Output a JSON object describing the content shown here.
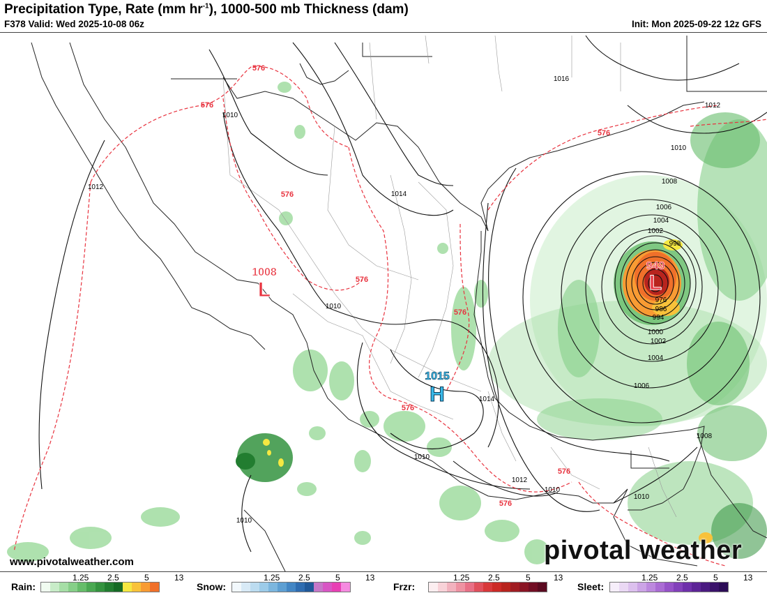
{
  "header": {
    "title_main": "Precipitation Type, Rate (mm hr",
    "title_sup": "-1",
    "title_rest": "), 1000-500 mb Thickness (dam)",
    "valid": "F378 Valid: Wed 2025-10-08 06z",
    "init": "Init: Mon 2025-09-22 12z GFS"
  },
  "map": {
    "pressure_centers": [
      {
        "type": "L",
        "value": "1008",
        "color": "#e8333f"
      },
      {
        "type": "L",
        "value": "949",
        "color": "#e8333f"
      },
      {
        "type": "H",
        "value": "1015",
        "color": "#38b8e8"
      }
    ],
    "isobar_labels": [
      "1016",
      "1012",
      "1010",
      "1012",
      "1014",
      "1010",
      "1010",
      "1010",
      "1008",
      "1006",
      "1004",
      "1002",
      "998",
      "976",
      "986",
      "994",
      "1000",
      "1002",
      "1004",
      "1006",
      "1014",
      "1012",
      "1010",
      "1010",
      "1008",
      "1010"
    ],
    "thickness_labels": [
      "576",
      "576",
      "576",
      "576",
      "576",
      "576",
      "576",
      "576",
      "576"
    ]
  },
  "footer": {
    "website": "www.pivotalweather.com",
    "brand": "pivotal weather"
  },
  "legend": [
    {
      "name": "Rain:",
      "ticks": [
        "1.25",
        "2.5",
        "5",
        "13"
      ],
      "colors": [
        "#f0fbf0",
        "#c8ecc8",
        "#a6dea6",
        "#86cf88",
        "#66bd6a",
        "#4aa852",
        "#34933f",
        "#227d30",
        "#166a25",
        "#f5e842",
        "#f8c23a",
        "#f89b33",
        "#f0702a"
      ]
    },
    {
      "name": "Snow:",
      "ticks": [
        "1.25",
        "2.5",
        "5",
        "13"
      ],
      "colors": [
        "#f2f8fc",
        "#d8eaf6",
        "#bcdcf0",
        "#9ccbe8",
        "#7cb6de",
        "#5e9fd2",
        "#4386c4",
        "#2e6cb0",
        "#205898",
        "#c678c8",
        "#d856c4",
        "#e840b4",
        "#f58ae0"
      ]
    },
    {
      "name": "Frzr:",
      "ticks": [
        "1.25",
        "2.5",
        "5",
        "13"
      ],
      "colors": [
        "#fceef0",
        "#f8d2d8",
        "#f2b2be",
        "#ee92a2",
        "#e87086",
        "#e0505c",
        "#d8383a",
        "#cc2a26",
        "#b8241e",
        "#a01c22",
        "#8a1424",
        "#720e24",
        "#5a0a20"
      ]
    },
    {
      "name": "Sleet:",
      "ticks": [
        "1.25",
        "2.5",
        "5",
        "13"
      ],
      "colors": [
        "#f6eefa",
        "#ead8f4",
        "#dcc0ee",
        "#cca4e6",
        "#bc88de",
        "#aa6cd4",
        "#9652c8",
        "#8240ba",
        "#6e30aa",
        "#5c2496",
        "#4a1a80",
        "#3a126a",
        "#2c0c56"
      ]
    }
  ]
}
